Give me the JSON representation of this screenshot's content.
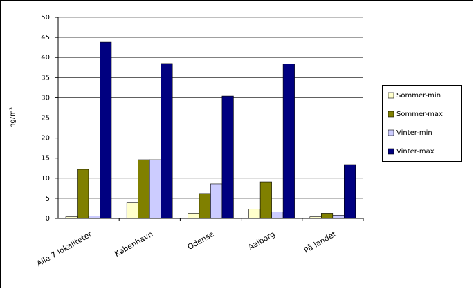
{
  "chart_data": {
    "type": "bar",
    "y_label": "ng/m³",
    "categories": [
      "Alle 7 lokaliteter",
      "København",
      "Odense",
      "Aalborg",
      "På landet"
    ],
    "series": [
      {
        "name": "Sommer-min",
        "color": "#ffffcc",
        "values": [
          0.4,
          4.0,
          1.3,
          2.3,
          0.4
        ]
      },
      {
        "name": "Sommer-max",
        "color": "#808000",
        "values": [
          12.2,
          14.6,
          6.2,
          9.1,
          1.3
        ]
      },
      {
        "name": "Vinter-min",
        "color": "#ccccff",
        "values": [
          0.6,
          14.6,
          8.6,
          1.6,
          0.8
        ]
      },
      {
        "name": "Vinter-max",
        "color": "#000080",
        "values": [
          43.8,
          38.5,
          30.4,
          38.4,
          13.4
        ]
      }
    ],
    "ylim": [
      0,
      50
    ],
    "yticks": [
      0,
      5,
      10,
      15,
      20,
      25,
      30,
      35,
      40,
      45,
      50
    ],
    "grid": true
  }
}
